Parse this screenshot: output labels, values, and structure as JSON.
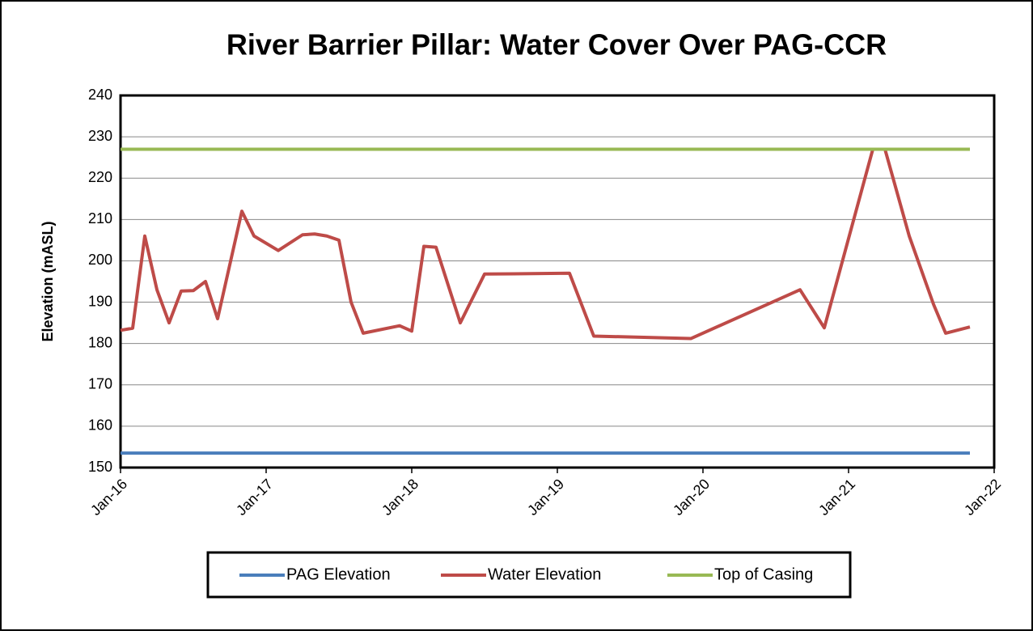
{
  "chart_data": {
    "type": "line",
    "title": "River Barrier Pillar: Water Cover Over PAG-CCR",
    "ylabel": "Elevation (mASL)",
    "xlim": [
      "2016-01",
      "2022-01"
    ],
    "xticks": [
      {
        "value": "2016-01",
        "label": "Jan-16"
      },
      {
        "value": "2017-01",
        "label": "Jan-17"
      },
      {
        "value": "2018-01",
        "label": "Jan-18"
      },
      {
        "value": "2019-01",
        "label": "Jan-19"
      },
      {
        "value": "2020-01",
        "label": "Jan-20"
      },
      {
        "value": "2021-01",
        "label": "Jan-21"
      },
      {
        "value": "2022-01",
        "label": "Jan-22"
      }
    ],
    "ylim": [
      150,
      240
    ],
    "yticks": [
      150,
      160,
      170,
      180,
      190,
      200,
      210,
      220,
      230,
      240
    ],
    "grid": true,
    "legend": "bottom",
    "series": [
      {
        "name": "PAG Elevation",
        "color": "#4a7ebb",
        "x": [
          "2016-01",
          "2021-11"
        ],
        "values": [
          153.5,
          153.5
        ]
      },
      {
        "name": "Water Elevation",
        "color": "#be4b48",
        "x": [
          "2016-01",
          "2016-02",
          "2016-03",
          "2016-04",
          "2016-05",
          "2016-06",
          "2016-07",
          "2016-08",
          "2016-09",
          "2016-11",
          "2016-12",
          "2017-02",
          "2017-04",
          "2017-05",
          "2017-06",
          "2017-07",
          "2017-08",
          "2017-09",
          "2017-12",
          "2018-01",
          "2018-02",
          "2018-03",
          "2018-05",
          "2018-07",
          "2019-02",
          "2019-04",
          "2019-12",
          "2020-09",
          "2020-11",
          "2021-03",
          "2021-04",
          "2021-06",
          "2021-08",
          "2021-09",
          "2021-11"
        ],
        "values": [
          183.2,
          183.7,
          206,
          193,
          185,
          192.7,
          192.8,
          195,
          186,
          212,
          206,
          202.5,
          206.3,
          206.5,
          206,
          205,
          190,
          182.5,
          184.3,
          183,
          203.5,
          203.3,
          185,
          196.8,
          197,
          181.8,
          181.2,
          193,
          183.8,
          227,
          227,
          206,
          189.5,
          182.5,
          184
        ]
      },
      {
        "name": "Top of Casing",
        "color": "#98b954",
        "x": [
          "2016-01",
          "2021-11"
        ],
        "values": [
          227,
          227
        ]
      }
    ]
  }
}
